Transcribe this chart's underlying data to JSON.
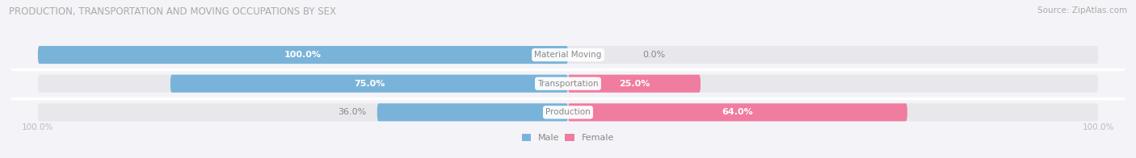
{
  "title": "PRODUCTION, TRANSPORTATION AND MOVING OCCUPATIONS BY SEX",
  "source": "Source: ZipAtlas.com",
  "categories": [
    "Material Moving",
    "Transportation",
    "Production"
  ],
  "male_values": [
    100.0,
    75.0,
    36.0
  ],
  "female_values": [
    0.0,
    25.0,
    64.0
  ],
  "male_color": "#7ab3d9",
  "female_color": "#f07ca0",
  "bar_bg_color": "#e8e8ec",
  "fig_bg_color": "#f4f4f8",
  "bar_height": 0.62,
  "figsize": [
    14.06,
    1.96
  ],
  "dpi": 100,
  "xlim_left": -105,
  "xlim_right": 105,
  "title_color": "#aaaaaa",
  "source_color": "#aaaaaa",
  "cat_label_color": "#888888",
  "value_inside_color": "#ffffff",
  "value_outside_color": "#888888",
  "legend_male_label": "Male",
  "legend_female_label": "Female",
  "bottom_tick_label": "100.0%"
}
